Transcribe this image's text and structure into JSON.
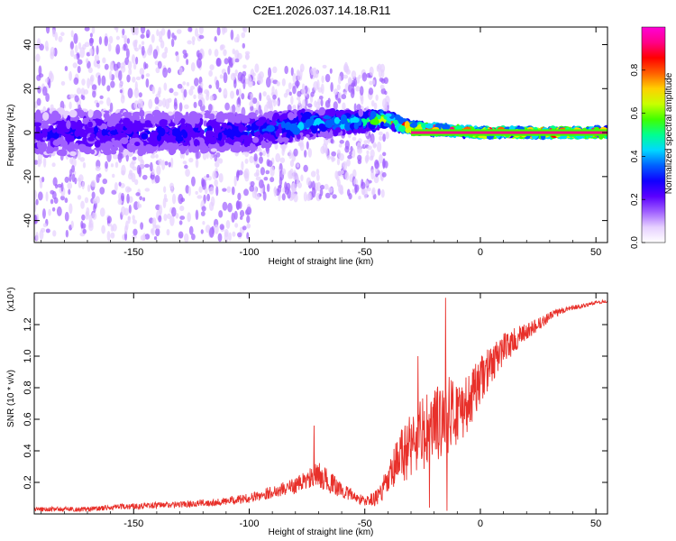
{
  "title": "C2E1.2026.037.14.18.R11",
  "colors": {
    "snr_line": "#e8302a",
    "colormap": [
      "#ffffff",
      "#e6d0ff",
      "#a060ff",
      "#5a00ff",
      "#1000ff",
      "#0060ff",
      "#00d8ff",
      "#00ff90",
      "#40ff00",
      "#c8ff00",
      "#ffd000",
      "#ff6000",
      "#ff0000",
      "#ff0088",
      "#ff00d8"
    ]
  },
  "chart_data": [
    {
      "type": "heatmap",
      "name": "spectrogram",
      "xlabel": "Height of straight line (km)",
      "ylabel": "Frequency (Hz)",
      "xlim": [
        -193,
        55
      ],
      "ylim": [
        -50,
        48
      ],
      "xticks": [
        -150,
        -100,
        -50,
        0,
        50
      ],
      "xtick_labels": [
        "-150",
        "-100",
        "-50",
        "0",
        "50"
      ],
      "yticks": [
        -40,
        -20,
        0,
        20,
        40
      ],
      "ytick_labels": [
        "-40",
        "-20",
        "0",
        "20",
        "40"
      ],
      "colorbar": {
        "label": "Normalized spectral amplitude",
        "range": [
          0,
          1
        ],
        "ticks": [
          0.0,
          0.2,
          0.4,
          0.6,
          0.8
        ],
        "tick_labels": [
          "0.0",
          "0.2",
          "0.4",
          "0.6",
          "0.8"
        ]
      },
      "band_profile": [
        {
          "x": -193,
          "center": 0,
          "halfwidth": 10,
          "amplitude": 0.25
        },
        {
          "x": -150,
          "center": 0,
          "halfwidth": 9,
          "amplitude": 0.28
        },
        {
          "x": -100,
          "center": 0,
          "halfwidth": 8,
          "amplitude": 0.32
        },
        {
          "x": -75,
          "center": 4,
          "halfwidth": 6,
          "amplitude": 0.4
        },
        {
          "x": -50,
          "center": 5,
          "halfwidth": 4,
          "amplitude": 0.5
        },
        {
          "x": -40,
          "center": 6,
          "halfwidth": 3,
          "amplitude": 0.7
        },
        {
          "x": -30,
          "center": 2,
          "halfwidth": 2,
          "amplitude": 0.85
        },
        {
          "x": 0,
          "center": 0,
          "halfwidth": 1.5,
          "amplitude": 0.95
        },
        {
          "x": 55,
          "center": 0,
          "halfwidth": 1.5,
          "amplitude": 1.0
        }
      ]
    },
    {
      "type": "line",
      "name": "snr",
      "xlabel": "Height of straight line (km)",
      "ylabel": "SNR (10 * v/v)",
      "y_multiplier": "(x10⁴)",
      "xlim": [
        -193,
        55
      ],
      "ylim": [
        0,
        1.4
      ],
      "xticks": [
        -150,
        -100,
        -50,
        0,
        50
      ],
      "xtick_labels": [
        "-150",
        "-100",
        "-50",
        "0",
        "50"
      ],
      "yticks": [
        0.2,
        0.4,
        0.6,
        0.8,
        1.0,
        1.2
      ],
      "ytick_labels": [
        "0.2",
        "0.4",
        "0.6",
        "0.8",
        "1.0",
        "1.2"
      ],
      "series": [
        {
          "name": "SNR",
          "x": [
            -193,
            -170,
            -150,
            -130,
            -110,
            -100,
            -90,
            -80,
            -70,
            -65,
            -60,
            -50,
            -45,
            -40,
            -35,
            -30,
            -25,
            -20,
            -15,
            -10,
            -5,
            0,
            5,
            10,
            15,
            20,
            25,
            30,
            35,
            40,
            45,
            50,
            55
          ],
          "y": [
            0.03,
            0.03,
            0.05,
            0.06,
            0.08,
            0.1,
            0.14,
            0.18,
            0.25,
            0.2,
            0.15,
            0.08,
            0.1,
            0.2,
            0.35,
            0.45,
            0.5,
            0.55,
            0.62,
            0.65,
            0.7,
            0.85,
            0.95,
            1.05,
            1.1,
            1.15,
            1.2,
            1.25,
            1.29,
            1.31,
            1.32,
            1.34,
            1.35
          ],
          "noise": [
            0.015,
            0.015,
            0.02,
            0.02,
            0.025,
            0.03,
            0.04,
            0.05,
            0.08,
            0.07,
            0.05,
            0.03,
            0.05,
            0.1,
            0.18,
            0.22,
            0.25,
            0.25,
            0.25,
            0.22,
            0.18,
            0.15,
            0.12,
            0.1,
            0.08,
            0.06,
            0.04,
            0.03,
            0.02,
            0.015,
            0.012,
            0.01,
            0.01
          ],
          "spikes": [
            {
              "x": -72,
              "y": 0.56
            },
            {
              "x": -15,
              "y": 1.37
            },
            {
              "x": -14.5,
              "y": 0.02
            },
            {
              "x": -22,
              "y": 0.04
            },
            {
              "x": -27,
              "y": 1.0
            }
          ]
        }
      ]
    }
  ]
}
